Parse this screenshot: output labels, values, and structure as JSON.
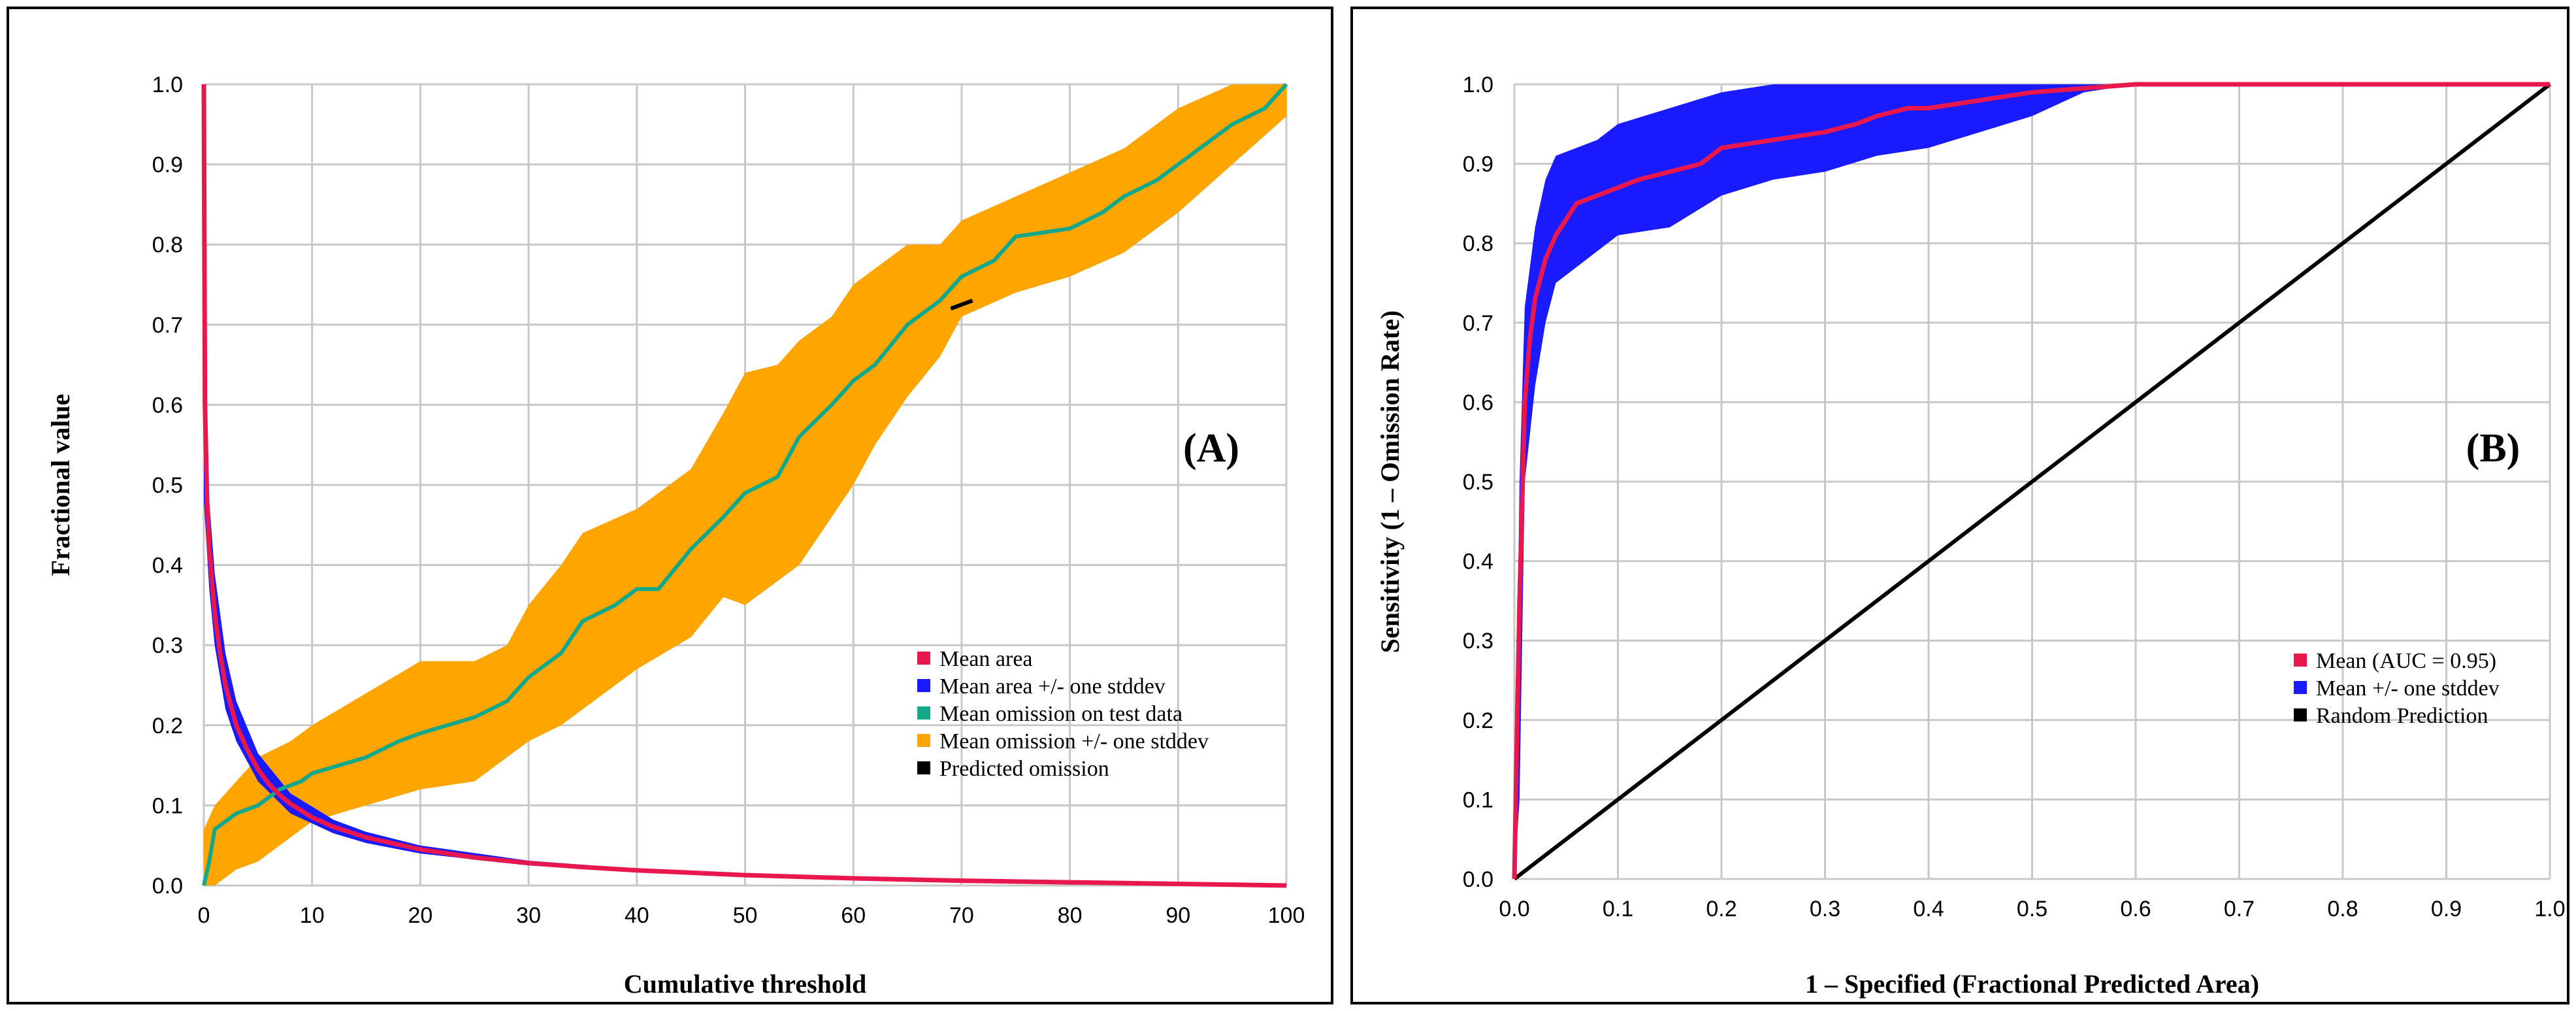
{
  "colors": {
    "mean_area": "#e8174d",
    "area_band": "#1a1aff",
    "test_omission": "#14a88a",
    "omission_band": "#ffa500",
    "predicted": "#000000",
    "roc_mean": "#e8174d",
    "roc_band": "#1a1aff",
    "random": "#000000",
    "grid": "#c8c8c8"
  },
  "chart_data": [
    {
      "type": "line",
      "panel_label": "(A)",
      "xlabel": "Cumulative threshold",
      "ylabel": "Fractional value",
      "xlim": [
        0,
        100
      ],
      "ylim": [
        0,
        1
      ],
      "x_ticks": [
        0,
        10,
        20,
        30,
        40,
        50,
        60,
        70,
        80,
        90,
        100
      ],
      "x_tick_labels": [
        "0",
        "10",
        "20",
        "30",
        "40",
        "50",
        "60",
        "70",
        "80",
        "90",
        "100"
      ],
      "y_ticks": [
        0,
        0.1,
        0.2,
        0.3,
        0.4,
        0.5,
        0.6,
        0.7,
        0.8,
        0.9,
        1.0
      ],
      "y_tick_labels": [
        "0.0",
        "0.1",
        "0.2",
        "0.3",
        "0.4",
        "0.5",
        "0.6",
        "0.7",
        "0.8",
        "0.9",
        "1.0"
      ],
      "grid": true,
      "legend_position": "lower-right",
      "legend": [
        "Mean area",
        "Mean area +/- one stddev",
        "Mean omission on test data",
        "Mean omission +/- one stddev",
        "Predicted omission"
      ],
      "series": [
        {
          "name": "Mean area",
          "x": [
            0,
            0.1,
            0.3,
            0.5,
            1,
            1.5,
            2,
            3,
            4,
            5,
            6,
            7,
            8,
            10,
            12,
            15,
            20,
            25,
            30,
            35,
            40,
            50,
            60,
            70,
            80,
            90,
            100
          ],
          "y": [
            1.0,
            0.6,
            0.48,
            0.42,
            0.34,
            0.29,
            0.25,
            0.2,
            0.17,
            0.145,
            0.127,
            0.113,
            0.102,
            0.085,
            0.073,
            0.06,
            0.045,
            0.035,
            0.028,
            0.023,
            0.019,
            0.013,
            0.009,
            0.006,
            0.004,
            0.002,
            0.0
          ]
        },
        {
          "name": "Mean area +/- one stddev",
          "x": [
            0,
            0.5,
            1,
            2,
            3,
            5,
            8,
            12,
            15,
            20,
            30,
            40
          ],
          "lower": [
            0.48,
            0.37,
            0.3,
            0.22,
            0.18,
            0.13,
            0.09,
            0.065,
            0.053,
            0.04,
            0.025,
            0.017
          ],
          "upper": [
            0.63,
            0.48,
            0.39,
            0.29,
            0.23,
            0.165,
            0.115,
            0.082,
            0.067,
            0.05,
            0.031,
            0.021
          ]
        },
        {
          "name": "Mean omission on test data",
          "x": [
            0,
            0.5,
            1,
            3,
            5,
            7,
            9,
            10,
            15,
            18,
            20,
            25,
            28,
            30,
            33,
            35,
            38,
            40,
            42,
            45,
            48,
            50,
            53,
            55,
            58,
            60,
            62,
            65,
            68,
            70,
            73,
            75,
            80,
            83,
            85,
            88,
            90,
            93,
            95,
            98,
            100
          ],
          "y": [
            0.0,
            0.03,
            0.07,
            0.09,
            0.1,
            0.12,
            0.13,
            0.14,
            0.16,
            0.18,
            0.19,
            0.21,
            0.23,
            0.26,
            0.29,
            0.33,
            0.35,
            0.37,
            0.37,
            0.42,
            0.46,
            0.49,
            0.51,
            0.56,
            0.6,
            0.63,
            0.65,
            0.7,
            0.73,
            0.76,
            0.78,
            0.81,
            0.82,
            0.84,
            0.86,
            0.88,
            0.9,
            0.93,
            0.95,
            0.97,
            1.0
          ]
        },
        {
          "name": "Mean omission +/- one stddev",
          "x": [
            0,
            1,
            3,
            5,
            8,
            10,
            15,
            20,
            25,
            28,
            30,
            33,
            35,
            40,
            45,
            48,
            50,
            53,
            55,
            58,
            60,
            62,
            65,
            68,
            70,
            75,
            80,
            85,
            88,
            90,
            95,
            100
          ],
          "lower": [
            0.0,
            0.0,
            0.02,
            0.03,
            0.06,
            0.08,
            0.1,
            0.12,
            0.13,
            0.16,
            0.18,
            0.2,
            0.22,
            0.27,
            0.31,
            0.36,
            0.35,
            0.38,
            0.4,
            0.46,
            0.5,
            0.55,
            0.61,
            0.66,
            0.71,
            0.74,
            0.76,
            0.79,
            0.82,
            0.84,
            0.9,
            0.96
          ],
          "upper": [
            0.07,
            0.1,
            0.13,
            0.16,
            0.18,
            0.2,
            0.24,
            0.28,
            0.28,
            0.3,
            0.35,
            0.4,
            0.44,
            0.47,
            0.52,
            0.59,
            0.64,
            0.65,
            0.68,
            0.71,
            0.75,
            0.77,
            0.8,
            0.8,
            0.83,
            0.86,
            0.89,
            0.92,
            0.95,
            0.97,
            1.0,
            1.0
          ]
        },
        {
          "name": "Predicted omission",
          "x": [
            69,
            70,
            71
          ],
          "y": [
            0.72,
            0.725,
            0.73
          ]
        }
      ]
    },
    {
      "type": "line",
      "panel_label": "(B)",
      "xlabel": "1 – Specified (Fractional Predicted Area)",
      "ylabel": "Sensitivity (1 – Omission Rate)",
      "xlim": [
        0,
        1
      ],
      "ylim": [
        0,
        1
      ],
      "x_ticks": [
        0,
        0.1,
        0.2,
        0.3,
        0.4,
        0.5,
        0.6,
        0.7,
        0.8,
        0.9,
        1.0
      ],
      "x_tick_labels": [
        "0.0",
        "0.1",
        "0.2",
        "0.3",
        "0.4",
        "0.5",
        "0.6",
        "0.7",
        "0.8",
        "0.9",
        "1.0"
      ],
      "y_ticks": [
        0,
        0.1,
        0.2,
        0.3,
        0.4,
        0.5,
        0.6,
        0.7,
        0.8,
        0.9,
        1.0
      ],
      "y_tick_labels": [
        "0.0",
        "0.1",
        "0.2",
        "0.3",
        "0.4",
        "0.5",
        "0.6",
        "0.7",
        "0.8",
        "0.9",
        "1.0"
      ],
      "grid": true,
      "legend_position": "lower-right",
      "legend": [
        "Mean (AUC = 0.95)",
        "Mean +/- one stddev",
        "Random Prediction"
      ],
      "series": [
        {
          "name": "Mean (AUC = 0.95)",
          "x": [
            0,
            0.002,
            0.005,
            0.008,
            0.01,
            0.015,
            0.02,
            0.03,
            0.04,
            0.05,
            0.06,
            0.08,
            0.1,
            0.12,
            0.15,
            0.18,
            0.2,
            0.25,
            0.3,
            0.33,
            0.35,
            0.38,
            0.4,
            0.45,
            0.5,
            0.55,
            0.6,
            0.7,
            0.8,
            0.9,
            1.0
          ],
          "y": [
            0.0,
            0.15,
            0.35,
            0.5,
            0.6,
            0.68,
            0.73,
            0.78,
            0.81,
            0.83,
            0.85,
            0.86,
            0.87,
            0.88,
            0.89,
            0.9,
            0.92,
            0.93,
            0.94,
            0.95,
            0.96,
            0.97,
            0.97,
            0.98,
            0.99,
            0.995,
            1.0,
            1.0,
            1.0,
            1.0,
            1.0
          ]
        },
        {
          "name": "Mean +/- one stddev",
          "x": [
            0,
            0.005,
            0.01,
            0.02,
            0.03,
            0.04,
            0.06,
            0.08,
            0.1,
            0.15,
            0.2,
            0.25,
            0.3,
            0.35,
            0.4,
            0.45,
            0.5,
            0.55,
            0.6,
            1.0
          ],
          "lower": [
            0.0,
            0.1,
            0.5,
            0.62,
            0.7,
            0.75,
            0.77,
            0.79,
            0.81,
            0.82,
            0.86,
            0.88,
            0.89,
            0.91,
            0.92,
            0.94,
            0.96,
            0.99,
            1.0,
            1.0
          ],
          "upper": [
            0.0,
            0.5,
            0.72,
            0.82,
            0.88,
            0.91,
            0.92,
            0.93,
            0.95,
            0.97,
            0.99,
            1.0,
            1.0,
            1.0,
            1.0,
            1.0,
            1.0,
            1.0,
            1.0,
            1.0
          ]
        },
        {
          "name": "Random Prediction",
          "x": [
            0,
            1
          ],
          "y": [
            0,
            1
          ]
        }
      ]
    }
  ]
}
